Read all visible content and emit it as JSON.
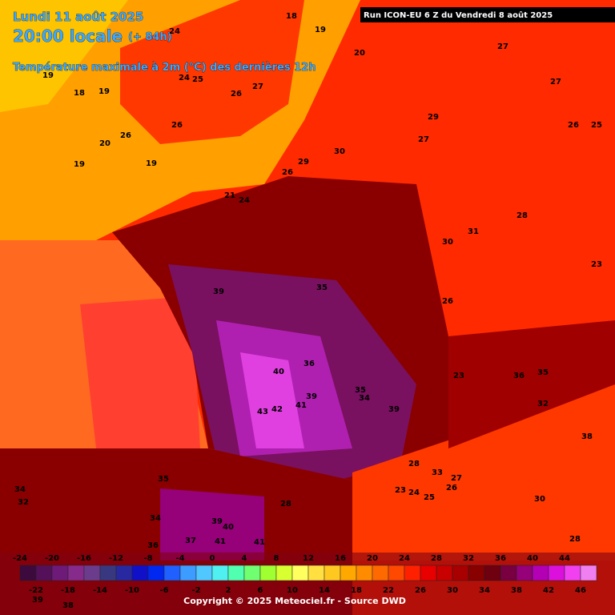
{
  "header": {
    "date": "Lundi 11 août 2025",
    "time": "20:00 locale",
    "lead": "(+ 84h)",
    "parameter": "Température maximale à 2m (°C) des dernières 12h",
    "run": "Run ICON-EU 6 Z du Vendredi 8 août 2025"
  },
  "map_labels": [
    18,
    19,
    24,
    20,
    27,
    25,
    24,
    19,
    18,
    19,
    27,
    26,
    27,
    26,
    26,
    29,
    26,
    25,
    20,
    27,
    19,
    19,
    30,
    29,
    26,
    21,
    24,
    28,
    30,
    31,
    35,
    39,
    23,
    26,
    40,
    36,
    36,
    35,
    35,
    34,
    39,
    41,
    43,
    42,
    39,
    23,
    32,
    38,
    28,
    33,
    27,
    23,
    24,
    26,
    25,
    30,
    35,
    34,
    32,
    34,
    39,
    40,
    37,
    41,
    41,
    28,
    36,
    28,
    38,
    39
  ],
  "scale": {
    "ticks": [
      -24,
      -22,
      -20,
      -18,
      -16,
      -14,
      -12,
      -10,
      -8,
      -6,
      -4,
      -2,
      0,
      2,
      4,
      6,
      8,
      10,
      12,
      14,
      16,
      18,
      20,
      22,
      24,
      26,
      28,
      30,
      32,
      34,
      36,
      38,
      40,
      42,
      44,
      46
    ],
    "colors": [
      "#3c0a3c",
      "#55105a",
      "#6e1a78",
      "#862a8c",
      "#6c3c8c",
      "#383880",
      "#2828a0",
      "#1010c8",
      "#0028f0",
      "#2060ff",
      "#3c9cff",
      "#50c8ff",
      "#50f0f0",
      "#50ffb0",
      "#70ff70",
      "#a0ff30",
      "#d8ff30",
      "#ffff60",
      "#ffe040",
      "#ffc820",
      "#ffa800",
      "#ff8c00",
      "#ff6a00",
      "#ff4800",
      "#ff2000",
      "#e80000",
      "#c80000",
      "#a80000",
      "#880000",
      "#6e0010",
      "#780040",
      "#960078",
      "#b400b4",
      "#dc10dc",
      "#f040f0",
      "#f080f0"
    ]
  },
  "footer": {
    "copyright": "Copyright © 2025 Meteociel.fr - Source DWD"
  }
}
